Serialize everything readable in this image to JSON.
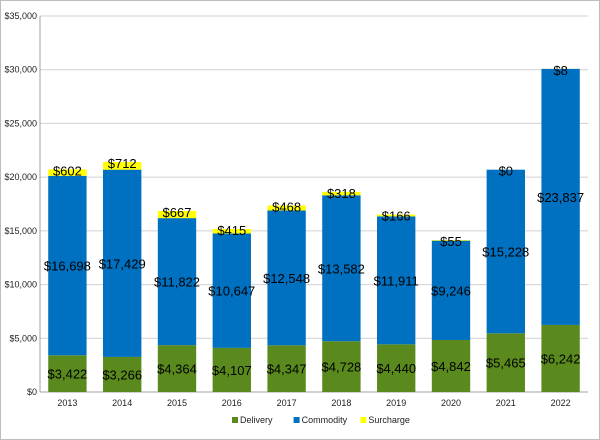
{
  "chart_data": {
    "type": "bar",
    "stacked": true,
    "categories": [
      "2013",
      "2014",
      "2015",
      "2016",
      "2017",
      "2018",
      "2019",
      "2020",
      "2021",
      "2022"
    ],
    "series": [
      {
        "name": "Delivery",
        "color": "#5a8a1e",
        "values": [
          3422,
          3266,
          4364,
          4107,
          4347,
          4728,
          4440,
          4842,
          5465,
          6242
        ],
        "labels": [
          "$3,422",
          "$3,266",
          "$4,364",
          "$4,107",
          "$4,347",
          "$4,728",
          "$4,440",
          "$4,842",
          "$5,465",
          "$6,242"
        ]
      },
      {
        "name": "Commodity",
        "color": "#0070c0",
        "values": [
          16698,
          17429,
          11822,
          10647,
          12548,
          13582,
          11911,
          9246,
          15228,
          23837
        ],
        "labels": [
          "$16,698",
          "$17,429",
          "$11,822",
          "$10,647",
          "$12,548",
          "$13,582",
          "$11,911",
          "$9,246",
          "$15,228",
          "$23,837"
        ]
      },
      {
        "name": "Surcharge",
        "color": "#ffff00",
        "values": [
          602,
          712,
          667,
          415,
          468,
          318,
          166,
          55,
          0,
          8
        ],
        "labels": [
          "$602",
          "$712",
          "$667",
          "$415",
          "$468",
          "$318",
          "$166",
          "$55",
          "$0",
          "$8"
        ]
      }
    ],
    "ylim": [
      0,
      35000
    ],
    "yticks": [
      0,
      5000,
      10000,
      15000,
      20000,
      25000,
      30000,
      35000
    ],
    "ytick_labels": [
      "$0",
      "$5,000",
      "$10,000",
      "$15,000",
      "$20,000",
      "$25,000",
      "$30,000",
      "$35,000"
    ],
    "grid": true,
    "legend_position": "bottom"
  }
}
